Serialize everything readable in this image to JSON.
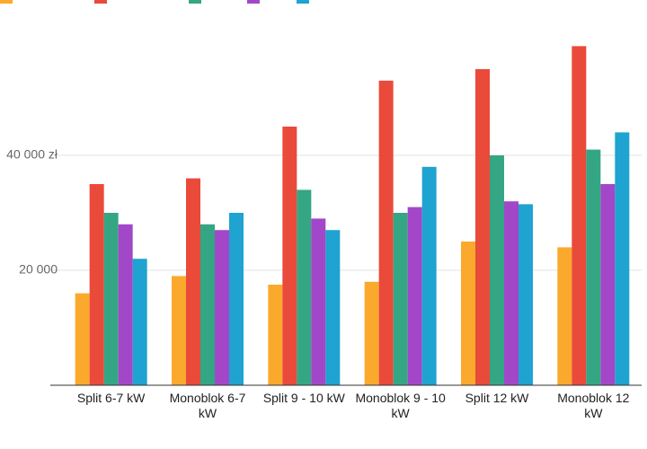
{
  "chart_data": {
    "type": "bar",
    "categories": [
      "Split 6-7 kW",
      "Monoblok 6-7 kW",
      "Split 9 - 10 kW",
      "Monoblok 9 - 10 kW",
      "Split 12 kW",
      "Monoblok 12 kW"
    ],
    "series": [
      {
        "color": "#fba92c",
        "values": [
          16000,
          19000,
          17500,
          18000,
          25000,
          24000
        ]
      },
      {
        "color": "#ea4a3a",
        "values": [
          35000,
          36000,
          45000,
          53000,
          55000,
          59000
        ]
      },
      {
        "color": "#34a683",
        "values": [
          30000,
          28000,
          34000,
          30000,
          40000,
          41000
        ]
      },
      {
        "color": "#a347c9",
        "values": [
          28000,
          27000,
          29000,
          31000,
          32000,
          35000
        ]
      },
      {
        "color": "#1fa3d1",
        "values": [
          22000,
          30000,
          27000,
          38000,
          31500,
          44000
        ]
      }
    ],
    "ylim": [
      0,
      60000
    ],
    "yticks": [
      {
        "value": 20000,
        "label": "20 000"
      },
      {
        "value": 40000,
        "label": "40 000 zł"
      }
    ],
    "grid": true
  }
}
